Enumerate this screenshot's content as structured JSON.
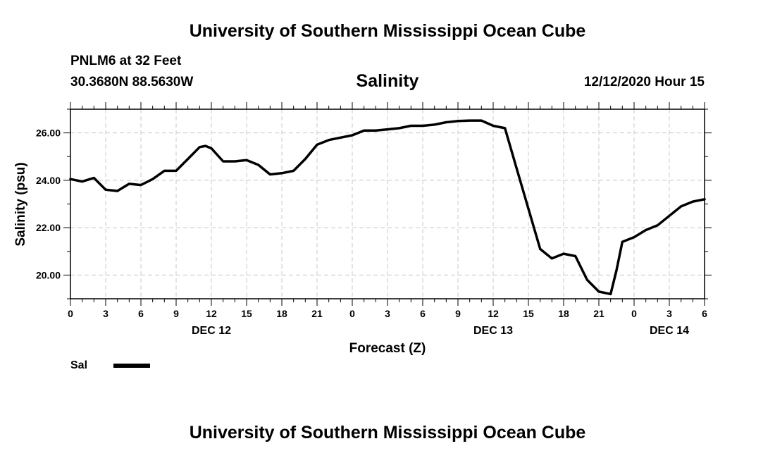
{
  "header": {
    "top_title": "University of Southern Mississippi Ocean Cube",
    "station": "PNLM6 at 32 Feet",
    "coordinates": "30.3680N 88.5630W",
    "timestamp": "12/12/2020 Hour 15",
    "bottom_title": "University of Southern Mississippi Ocean Cube"
  },
  "chart_data": {
    "type": "line",
    "title": "Salinity",
    "xlabel": "Forecast (Z)",
    "ylabel": "Salinity (psu)",
    "ylim": [
      19.0,
      27.0
    ],
    "xlim": [
      0,
      54
    ],
    "x_units": "hours since Dec 12 00Z",
    "grid": true,
    "y_ticks": [
      20.0,
      22.0,
      24.0,
      26.0
    ],
    "y_tick_labels": [
      "20.00",
      "22.00",
      "24.00",
      "26.00"
    ],
    "x_ticks": [
      0,
      3,
      6,
      9,
      12,
      15,
      18,
      21,
      24,
      27,
      30,
      33,
      36,
      39,
      42,
      45,
      48,
      51,
      54
    ],
    "x_tick_labels": [
      "0",
      "3",
      "6",
      "9",
      "12",
      "15",
      "18",
      "21",
      "0",
      "3",
      "6",
      "9",
      "12",
      "15",
      "18",
      "21",
      "0",
      "3",
      "6"
    ],
    "day_labels": [
      {
        "x": 12,
        "label": "DEC 12"
      },
      {
        "x": 36,
        "label": "DEC 13"
      },
      {
        "x": 51,
        "label": "DEC 14"
      }
    ],
    "legend_position": "bottom-left",
    "series": [
      {
        "name": "Sal",
        "color": "#000000",
        "x": [
          0,
          1,
          2,
          3,
          4,
          5,
          6,
          7,
          8,
          9,
          10,
          11,
          11.5,
          12,
          13,
          14,
          15,
          16,
          17,
          18,
          19,
          20,
          21,
          22,
          23,
          24,
          25,
          26,
          27,
          28,
          29,
          30,
          31,
          32,
          33,
          34,
          35,
          36,
          37,
          38,
          39,
          40,
          41,
          42,
          43,
          44,
          45,
          46,
          46.5,
          47,
          48,
          49,
          50,
          51,
          52,
          53,
          54
        ],
        "values": [
          24.05,
          23.95,
          24.1,
          23.6,
          23.55,
          23.85,
          23.8,
          24.05,
          24.4,
          24.4,
          24.9,
          25.4,
          25.45,
          25.35,
          24.8,
          24.8,
          24.85,
          24.65,
          24.25,
          24.3,
          24.4,
          24.9,
          25.5,
          25.7,
          25.8,
          25.9,
          26.1,
          26.1,
          26.15,
          26.2,
          26.3,
          26.3,
          26.35,
          26.45,
          26.5,
          26.52,
          26.52,
          26.3,
          26.2,
          24.5,
          22.8,
          21.1,
          20.7,
          20.9,
          20.8,
          19.8,
          19.3,
          19.2,
          20.2,
          21.4,
          21.6,
          21.9,
          22.1,
          22.5,
          22.9,
          23.1,
          23.2
        ]
      }
    ]
  }
}
